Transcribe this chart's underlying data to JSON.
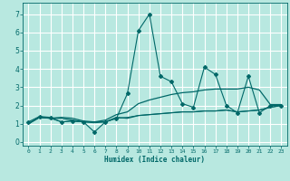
{
  "title": "",
  "xlabel": "Humidex (Indice chaleur)",
  "ylabel": "",
  "xlim": [
    -0.5,
    23.5
  ],
  "ylim": [
    -0.2,
    7.6
  ],
  "xticks": [
    0,
    1,
    2,
    3,
    4,
    5,
    6,
    7,
    8,
    9,
    10,
    11,
    12,
    13,
    14,
    15,
    16,
    17,
    18,
    19,
    20,
    21,
    22,
    23
  ],
  "yticks": [
    0,
    1,
    2,
    3,
    4,
    5,
    6,
    7
  ],
  "bg_color": "#b8e8e0",
  "grid_color": "#ffffff",
  "line_color": "#006868",
  "series": [
    {
      "x": [
        0,
        1,
        2,
        3,
        4,
        5,
        6,
        7,
        8,
        9,
        10,
        11,
        12,
        13,
        14,
        15,
        16,
        17,
        18,
        19,
        20,
        21,
        22,
        23
      ],
      "y": [
        1.1,
        1.4,
        1.35,
        1.1,
        1.15,
        1.1,
        0.55,
        1.1,
        1.3,
        2.65,
        6.1,
        7.0,
        3.6,
        3.3,
        2.1,
        1.9,
        4.1,
        3.7,
        2.0,
        1.6,
        3.6,
        1.6,
        2.0,
        2.0
      ],
      "linestyle": "-",
      "marker": "D",
      "markersize": 2.0,
      "linewidth": 0.8
    },
    {
      "x": [
        0,
        1,
        2,
        3,
        4,
        5,
        6,
        7,
        8,
        9,
        10,
        11,
        12,
        13,
        14,
        15,
        16,
        17,
        18,
        19,
        20,
        21,
        22,
        23
      ],
      "y": [
        1.0,
        1.35,
        1.3,
        1.3,
        1.2,
        1.1,
        1.1,
        1.1,
        1.35,
        1.3,
        1.45,
        1.5,
        1.55,
        1.6,
        1.65,
        1.65,
        1.7,
        1.7,
        1.75,
        1.65,
        1.7,
        1.75,
        1.9,
        2.0
      ],
      "linestyle": "-",
      "marker": null,
      "markersize": 0,
      "linewidth": 0.9
    },
    {
      "x": [
        0,
        1,
        2,
        3,
        4,
        5,
        6,
        7,
        8,
        9,
        10,
        11,
        12,
        13,
        14,
        15,
        16,
        17,
        18,
        19,
        20,
        21,
        22,
        23
      ],
      "y": [
        1.0,
        1.35,
        1.3,
        1.35,
        1.3,
        1.15,
        1.1,
        1.2,
        1.5,
        1.65,
        2.1,
        2.3,
        2.45,
        2.6,
        2.7,
        2.75,
        2.85,
        2.9,
        2.9,
        2.9,
        3.0,
        2.85,
        2.05,
        2.05
      ],
      "linestyle": "-",
      "marker": null,
      "markersize": 0,
      "linewidth": 0.9
    },
    {
      "x": [
        0,
        1,
        2,
        3,
        4,
        5,
        6,
        7,
        8,
        9,
        10,
        11,
        12,
        13,
        14,
        15,
        16,
        17,
        18,
        19,
        20,
        21,
        22,
        23
      ],
      "y": [
        1.0,
        1.35,
        1.3,
        1.1,
        1.15,
        1.1,
        1.05,
        1.1,
        1.3,
        1.35,
        1.45,
        1.5,
        1.55,
        1.6,
        1.65,
        1.65,
        1.7,
        1.7,
        1.75,
        1.65,
        1.7,
        1.75,
        1.9,
        2.0
      ],
      "linestyle": "-",
      "marker": null,
      "markersize": 0,
      "linewidth": 0.7
    }
  ]
}
